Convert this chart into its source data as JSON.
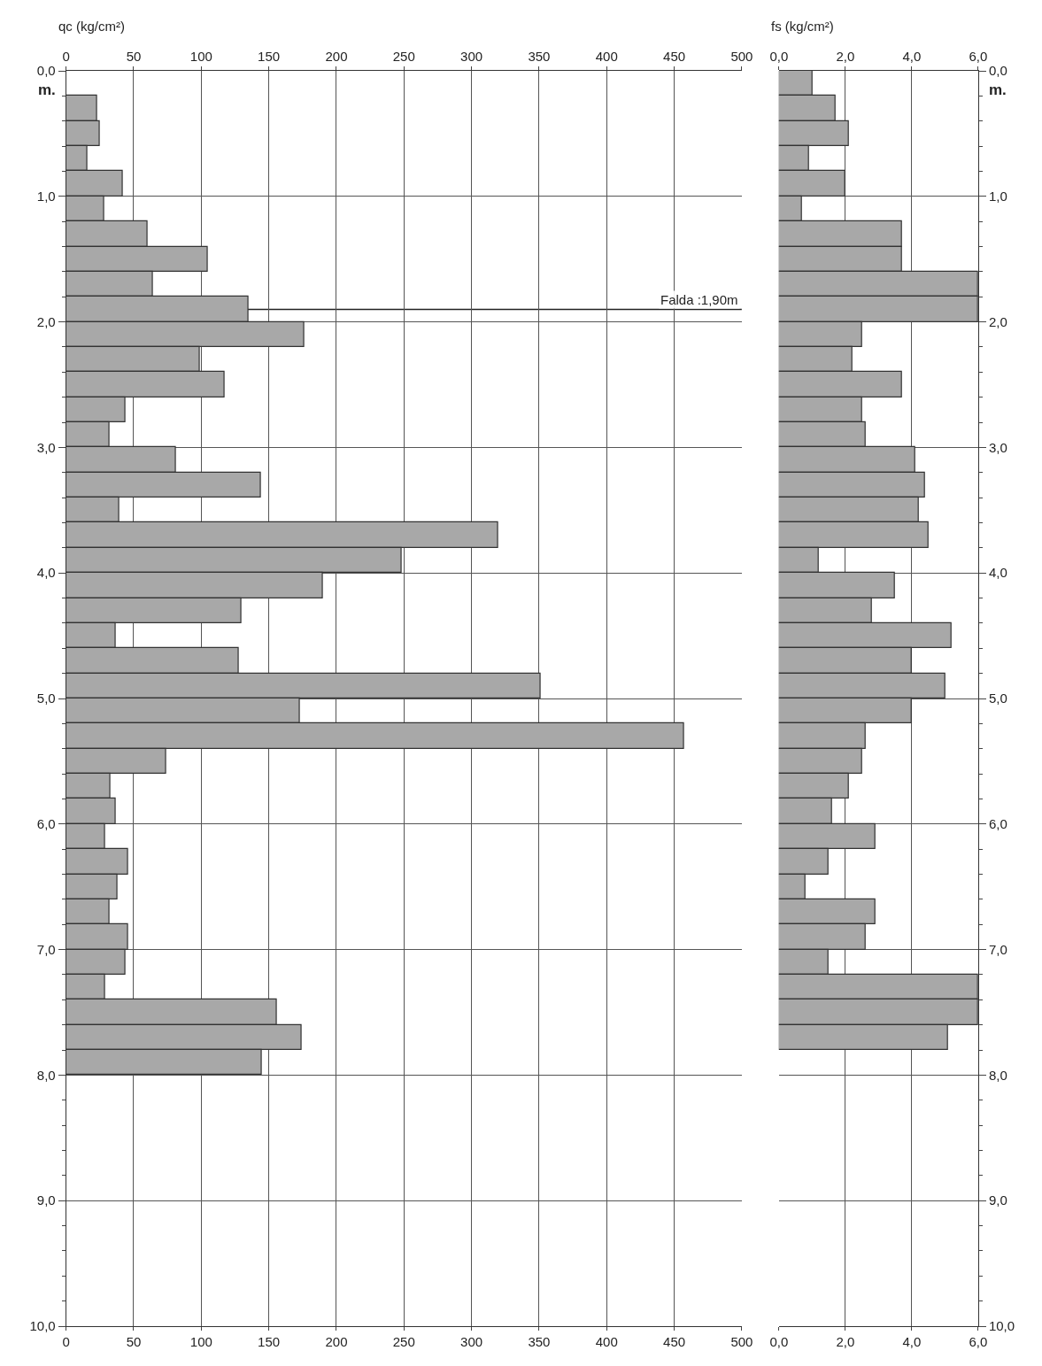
{
  "chart_data": [
    {
      "type": "bar",
      "orientation": "horizontal",
      "x2label": "qc (kg/cm²)",
      "ylabel": "m.",
      "color": "#a8a8a8",
      "grid": true,
      "x": [
        0.3,
        0.5,
        0.7,
        0.9,
        1.1,
        1.3,
        1.5,
        1.7,
        1.9,
        2.1,
        2.3,
        2.5,
        2.7,
        2.9,
        3.1,
        3.3,
        3.5,
        3.7,
        3.9,
        4.1,
        4.3,
        4.5,
        4.7,
        4.9,
        5.1,
        5.3,
        5.5,
        5.7,
        5.9,
        6.1,
        6.3,
        6.5,
        6.7,
        6.9,
        7.1,
        7.3,
        7.5,
        7.7,
        7.9
      ],
      "values": [
        23,
        25,
        16,
        42,
        28,
        60,
        105,
        64,
        135,
        176,
        99,
        117,
        44,
        32,
        81,
        144,
        39,
        320,
        248,
        190,
        130,
        37,
        128,
        351,
        173,
        457,
        74,
        33,
        37,
        29,
        46,
        38,
        32,
        46,
        44,
        29,
        156,
        174,
        145
      ],
      "xlim": [
        0,
        500
      ],
      "xticks": [
        0,
        50,
        100,
        150,
        200,
        250,
        300,
        350,
        400,
        450,
        500
      ],
      "x2lim": [
        0,
        500
      ],
      "x2ticks": [
        0,
        50,
        100,
        150,
        200,
        250,
        300,
        350,
        400,
        450,
        500
      ],
      "ylim": [
        10,
        0
      ],
      "yticks": [
        {
          "value": 0,
          "label": "0,0"
        },
        {
          "value": 0.2,
          "label": null
        },
        {
          "value": 0.4,
          "label": null
        },
        {
          "value": 0.6,
          "label": null
        },
        {
          "value": 0.8,
          "label": null
        },
        {
          "value": 1,
          "label": "1,0"
        },
        {
          "value": 1.2,
          "label": null
        },
        {
          "value": 1.4,
          "label": null
        },
        {
          "value": 1.6,
          "label": null
        },
        {
          "value": 1.8,
          "label": null
        },
        {
          "value": 2,
          "label": "2,0"
        },
        {
          "value": 2.2,
          "label": null
        },
        {
          "value": 2.4,
          "label": null
        },
        {
          "value": 2.6,
          "label": null
        },
        {
          "value": 2.8,
          "label": null
        },
        {
          "value": 3,
          "label": "3,0"
        },
        {
          "value": 3.2,
          "label": null
        },
        {
          "value": 3.4,
          "label": null
        },
        {
          "value": 3.6,
          "label": null
        },
        {
          "value": 3.8,
          "label": null
        },
        {
          "value": 4,
          "label": "4,0"
        },
        {
          "value": 4.2,
          "label": null
        },
        {
          "value": 4.4,
          "label": null
        },
        {
          "value": 4.6,
          "label": null
        },
        {
          "value": 4.8,
          "label": null
        },
        {
          "value": 5,
          "label": "5,0"
        },
        {
          "value": 5.2,
          "label": null
        },
        {
          "value": 5.4,
          "label": null
        },
        {
          "value": 5.6,
          "label": null
        },
        {
          "value": 5.8,
          "label": null
        },
        {
          "value": 6,
          "label": "6,0"
        },
        {
          "value": 6.2,
          "label": null
        },
        {
          "value": 6.4,
          "label": null
        },
        {
          "value": 6.6,
          "label": null
        },
        {
          "value": 6.8,
          "label": null
        },
        {
          "value": 7,
          "label": "7,0"
        },
        {
          "value": 7.2,
          "label": null
        },
        {
          "value": 7.4,
          "label": null
        },
        {
          "value": 7.6,
          "label": null
        },
        {
          "value": 7.8,
          "label": null
        },
        {
          "value": 8,
          "label": "8,0"
        },
        {
          "value": 8.2,
          "label": null
        },
        {
          "value": 8.4,
          "label": null
        },
        {
          "value": 8.6,
          "label": null
        },
        {
          "value": 8.8,
          "label": null
        },
        {
          "value": 9,
          "label": "9,0"
        },
        {
          "value": 9.2,
          "label": null
        },
        {
          "value": 9.4,
          "label": null
        },
        {
          "value": 9.6,
          "label": null
        },
        {
          "value": 9.8,
          "label": null
        },
        {
          "value": 10,
          "label": "10,0"
        }
      ],
      "ref_lines": [
        {
          "axis": "y",
          "value": 1.9,
          "label": "Falda :1,90m",
          "color": "#222222"
        }
      ]
    },
    {
      "type": "bar",
      "orientation": "horizontal",
      "x2label": "fs (kg/cm²)",
      "ylabel": "m.",
      "color": "#a8a8a8",
      "grid": true,
      "x": [
        0.1,
        0.3,
        0.5,
        0.7,
        0.9,
        1.1,
        1.3,
        1.5,
        1.7,
        1.9,
        2.1,
        2.3,
        2.5,
        2.7,
        2.9,
        3.1,
        3.3,
        3.5,
        3.7,
        3.9,
        4.1,
        4.3,
        4.5,
        4.7,
        4.9,
        5.1,
        5.3,
        5.5,
        5.7,
        5.9,
        6.1,
        6.3,
        6.5,
        6.7,
        6.9,
        7.1,
        7.3,
        7.5,
        7.7
      ],
      "values": [
        1.0,
        1.7,
        2.1,
        0.9,
        2.0,
        0.7,
        3.7,
        3.7,
        6.0,
        6.0,
        2.5,
        2.2,
        3.7,
        2.5,
        2.6,
        4.1,
        4.4,
        4.2,
        4.5,
        1.2,
        3.5,
        2.8,
        5.2,
        4.0,
        5.0,
        4.0,
        2.6,
        2.5,
        2.1,
        1.6,
        2.9,
        1.5,
        0.8,
        2.9,
        2.6,
        1.5,
        6.0,
        6.0,
        5.1
      ],
      "xlim": [
        0,
        6
      ],
      "xticks": [
        {
          "value": 0,
          "label": "0,0"
        },
        {
          "value": 2,
          "label": "2,0"
        },
        {
          "value": 4,
          "label": "4,0"
        },
        {
          "value": 6,
          "label": "6,0"
        }
      ],
      "x2lim": [
        0,
        6
      ],
      "x2ticks": [
        {
          "value": 0,
          "label": "0,0"
        },
        {
          "value": 2,
          "label": "2,0"
        },
        {
          "value": 4,
          "label": "4,0"
        },
        {
          "value": 6,
          "label": "6,0"
        }
      ],
      "ylim": [
        10,
        0
      ],
      "yticks": [
        {
          "value": 0,
          "label": "0,0"
        },
        {
          "value": 0.2,
          "label": null
        },
        {
          "value": 0.4,
          "label": null
        },
        {
          "value": 0.6,
          "label": null
        },
        {
          "value": 0.8,
          "label": null
        },
        {
          "value": 1,
          "label": "1,0"
        },
        {
          "value": 1.2,
          "label": null
        },
        {
          "value": 1.4,
          "label": null
        },
        {
          "value": 1.6,
          "label": null
        },
        {
          "value": 1.8,
          "label": null
        },
        {
          "value": 2,
          "label": "2,0"
        },
        {
          "value": 2.2,
          "label": null
        },
        {
          "value": 2.4,
          "label": null
        },
        {
          "value": 2.6,
          "label": null
        },
        {
          "value": 2.8,
          "label": null
        },
        {
          "value": 3,
          "label": "3,0"
        },
        {
          "value": 3.2,
          "label": null
        },
        {
          "value": 3.4,
          "label": null
        },
        {
          "value": 3.6,
          "label": null
        },
        {
          "value": 3.8,
          "label": null
        },
        {
          "value": 4,
          "label": "4,0"
        },
        {
          "value": 4.2,
          "label": null
        },
        {
          "value": 4.4,
          "label": null
        },
        {
          "value": 4.6,
          "label": null
        },
        {
          "value": 4.8,
          "label": null
        },
        {
          "value": 5,
          "label": "5,0"
        },
        {
          "value": 5.2,
          "label": null
        },
        {
          "value": 5.4,
          "label": null
        },
        {
          "value": 5.6,
          "label": null
        },
        {
          "value": 5.8,
          "label": null
        },
        {
          "value": 6,
          "label": "6,0"
        },
        {
          "value": 6.2,
          "label": null
        },
        {
          "value": 6.4,
          "label": null
        },
        {
          "value": 6.6,
          "label": null
        },
        {
          "value": 6.8,
          "label": null
        },
        {
          "value": 7,
          "label": "7,0"
        },
        {
          "value": 7.2,
          "label": null
        },
        {
          "value": 7.4,
          "label": null
        },
        {
          "value": 7.6,
          "label": null
        },
        {
          "value": 7.8,
          "label": null
        },
        {
          "value": 8,
          "label": "8,0"
        },
        {
          "value": 8.2,
          "label": null
        },
        {
          "value": 8.4,
          "label": null
        },
        {
          "value": 8.6,
          "label": null
        },
        {
          "value": 8.8,
          "label": null
        },
        {
          "value": 9,
          "label": "9,0"
        },
        {
          "value": 9.2,
          "label": null
        },
        {
          "value": 9.4,
          "label": null
        },
        {
          "value": 9.6,
          "label": null
        },
        {
          "value": 9.8,
          "label": null
        },
        {
          "value": 10,
          "label": "10,0"
        }
      ]
    }
  ]
}
